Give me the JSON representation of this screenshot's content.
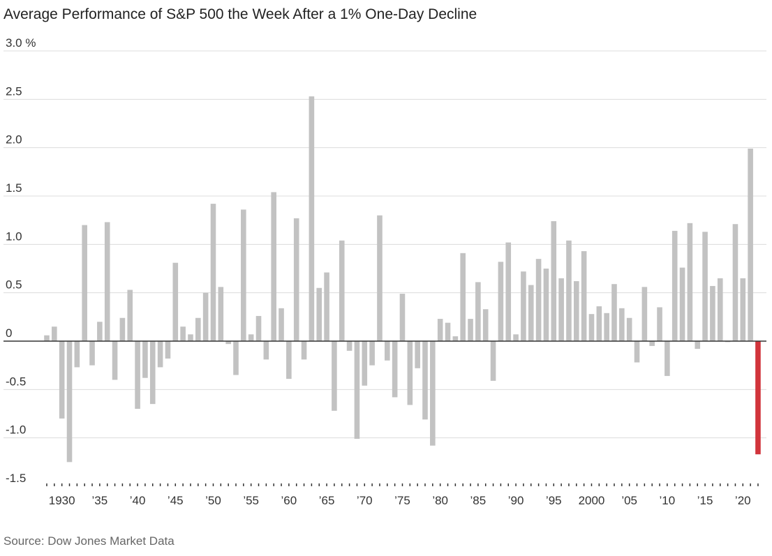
{
  "chart_data": {
    "type": "bar",
    "title": "Average Performance of S&P 500 the Week After a 1% One-Day Decline",
    "source": "Source: Dow Jones Market Data",
    "categories": [
      null,
      null,
      "1930",
      null,
      null,
      null,
      null,
      "’35",
      null,
      null,
      null,
      null,
      "’40",
      null,
      null,
      null,
      null,
      "’45",
      null,
      null,
      null,
      null,
      "’50",
      null,
      null,
      null,
      null,
      "’55",
      null,
      null,
      null,
      null,
      "’60",
      null,
      null,
      null,
      null,
      "’65",
      null,
      null,
      null,
      null,
      "’70",
      null,
      null,
      null,
      null,
      "’75",
      null,
      null,
      null,
      null,
      "’80",
      null,
      null,
      null,
      null,
      "’85",
      null,
      null,
      null,
      null,
      "’90",
      null,
      null,
      null,
      null,
      "’95",
      null,
      null,
      null,
      null,
      "2000",
      null,
      null,
      null,
      null,
      "’05",
      null,
      null,
      null,
      null,
      "’10",
      null,
      null,
      null,
      null,
      "’15",
      null,
      null,
      null,
      null,
      "’20",
      null,
      null
    ],
    "values": [
      0.06,
      0.15,
      -0.8,
      -1.25,
      -0.27,
      1.2,
      -0.25,
      0.2,
      1.23,
      -0.4,
      0.24,
      0.53,
      -0.7,
      -0.38,
      -0.65,
      -0.27,
      -0.18,
      0.81,
      0.15,
      0.07,
      0.24,
      0.5,
      1.42,
      0.56,
      -0.03,
      -0.35,
      1.36,
      0.07,
      0.26,
      -0.19,
      1.54,
      0.34,
      -0.39,
      1.27,
      -0.19,
      2.53,
      0.55,
      0.71,
      -0.72,
      1.04,
      -0.1,
      -1.01,
      -0.46,
      -0.25,
      1.3,
      -0.2,
      -0.58,
      0.49,
      -0.66,
      -0.28,
      -0.81,
      -1.08,
      0.23,
      0.19,
      0.05,
      0.91,
      0.23,
      0.61,
      0.33,
      -0.41,
      0.82,
      1.02,
      0.07,
      0.72,
      0.58,
      0.85,
      0.75,
      1.24,
      0.65,
      1.04,
      0.62,
      0.93,
      0.28,
      0.36,
      0.29,
      0.59,
      0.34,
      0.24,
      -0.22,
      0.56,
      -0.05,
      0.35,
      -0.36,
      1.14,
      0.76,
      1.22,
      -0.08,
      1.13,
      0.57,
      0.65,
      -0.01,
      1.21,
      0.65,
      1.99,
      -1.17
    ],
    "color": "#c2c2c2",
    "colors": [
      "#c2c2c2",
      "#c2c2c2",
      "#c2c2c2",
      "#c2c2c2",
      "#c2c2c2",
      "#c2c2c2",
      "#c2c2c2",
      "#c2c2c2",
      "#c2c2c2",
      "#c2c2c2",
      "#c2c2c2",
      "#c2c2c2",
      "#c2c2c2",
      "#c2c2c2",
      "#c2c2c2",
      "#c2c2c2",
      "#c2c2c2",
      "#c2c2c2",
      "#c2c2c2",
      "#c2c2c2",
      "#c2c2c2",
      "#c2c2c2",
      "#c2c2c2",
      "#c2c2c2",
      "#c2c2c2",
      "#c2c2c2",
      "#c2c2c2",
      "#c2c2c2",
      "#c2c2c2",
      "#c2c2c2",
      "#c2c2c2",
      "#c2c2c2",
      "#c2c2c2",
      "#c2c2c2",
      "#c2c2c2",
      "#c2c2c2",
      "#c2c2c2",
      "#c2c2c2",
      "#c2c2c2",
      "#c2c2c2",
      "#c2c2c2",
      "#c2c2c2",
      "#c2c2c2",
      "#c2c2c2",
      "#c2c2c2",
      "#c2c2c2",
      "#c2c2c2",
      "#c2c2c2",
      "#c2c2c2",
      "#c2c2c2",
      "#c2c2c2",
      "#c2c2c2",
      "#c2c2c2",
      "#c2c2c2",
      "#c2c2c2",
      "#c2c2c2",
      "#c2c2c2",
      "#c2c2c2",
      "#c2c2c2",
      "#c2c2c2",
      "#c2c2c2",
      "#c2c2c2",
      "#c2c2c2",
      "#c2c2c2",
      "#c2c2c2",
      "#c2c2c2",
      "#c2c2c2",
      "#c2c2c2",
      "#c2c2c2",
      "#c2c2c2",
      "#c2c2c2",
      "#c2c2c2",
      "#c2c2c2",
      "#c2c2c2",
      "#c2c2c2",
      "#c2c2c2",
      "#c2c2c2",
      "#c2c2c2",
      "#c2c2c2",
      "#c2c2c2",
      "#c2c2c2",
      "#c2c2c2",
      "#c2c2c2",
      "#c2c2c2",
      "#c2c2c2",
      "#c2c2c2",
      "#c2c2c2",
      "#c2c2c2",
      "#c2c2c2",
      "#c2c2c2",
      "#c2c2c2",
      "#c2c2c2",
      "#c2c2c2",
      "#c2c2c2",
      "#d1343b"
    ],
    "ylim": [
      -1.5,
      3.0
    ],
    "yticks": [
      {
        "value": 3.0,
        "label": "3.0 %"
      },
      2.5,
      {
        "value": 2.0,
        "label": "2.0"
      },
      1.5,
      {
        "value": 1.0,
        "label": "1.0"
      },
      0.5,
      0,
      -0.5,
      {
        "value": -1.0,
        "label": "-1.0"
      },
      -1.5
    ],
    "grid": true
  }
}
